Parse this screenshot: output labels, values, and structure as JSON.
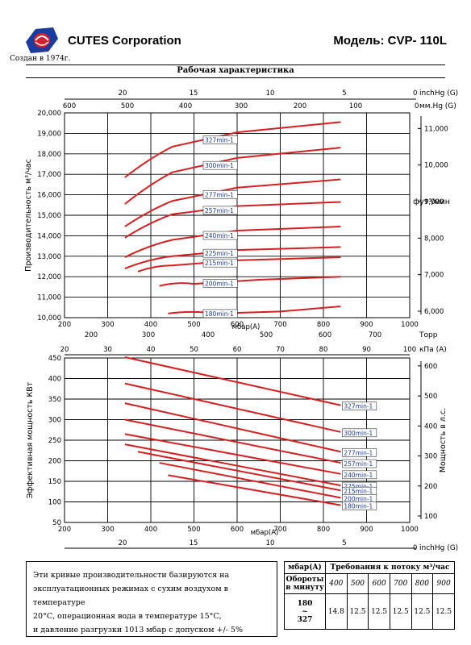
{
  "header": {
    "company": "CUTES Corporation",
    "model": "Модель: CVP- 110L",
    "founded": "Создан в 1974г.",
    "section_title": "Рабочая характеристика"
  },
  "logo": {
    "icon": "cutes-globe-logo",
    "color_blue": "#1a3c9c",
    "color_red": "#d2202a"
  },
  "chart_data": [
    {
      "type": "line",
      "title": "",
      "ylabel": "Производительность м³/час",
      "ylabel_right": "фут³/мин",
      "ylim": [
        10000,
        20000
      ],
      "yticks": [
        "10,000",
        "11,000",
        "12,000",
        "13,000",
        "14,000",
        "15,000",
        "16,000",
        "17,000",
        "18,000",
        "19,000",
        "20,000"
      ],
      "yticks_right": [
        "6,000",
        "7,000",
        "8,000",
        "9,000",
        "10,000",
        "11,000"
      ],
      "xlabel": "мбар(A)",
      "xlim": [
        200,
        1000
      ],
      "xticks": [
        "200",
        "300",
        "400",
        "500",
        "600",
        "700",
        "800",
        "900",
        "1000"
      ],
      "top_axis_inhg": {
        "label": "inchHg (G)",
        "ticks": [
          "0",
          "5",
          "10",
          "15",
          "20"
        ]
      },
      "top_axis_mmhg": {
        "label": "мм.Hg (G)",
        "ticks": [
          "0",
          "100",
          "200",
          "300",
          "400",
          "500",
          "600"
        ]
      },
      "bottom_axis_torr": {
        "label": "Торр",
        "ticks": [
          "200",
          "300",
          "400",
          "500",
          "600",
          "700"
        ]
      },
      "line_color": "#d42020",
      "series": [
        {
          "name": "327min-1",
          "x": [
            340,
            450,
            600,
            840
          ],
          "y": [
            16850,
            18350,
            19050,
            19550
          ]
        },
        {
          "name": "300min-1",
          "x": [
            340,
            450,
            600,
            840
          ],
          "y": [
            15550,
            17100,
            17800,
            18300
          ]
        },
        {
          "name": "277min-1",
          "x": [
            340,
            450,
            600,
            840
          ],
          "y": [
            14450,
            15700,
            16350,
            16750
          ]
        },
        {
          "name": "257min-1",
          "x": [
            340,
            450,
            600,
            840
          ],
          "y": [
            13900,
            15050,
            15450,
            15650
          ]
        },
        {
          "name": "240min-1",
          "x": [
            340,
            450,
            600,
            840
          ],
          "y": [
            12950,
            13800,
            14250,
            14450
          ]
        },
        {
          "name": "225min-1",
          "x": [
            340,
            450,
            600,
            840
          ],
          "y": [
            12400,
            13000,
            13300,
            13450
          ]
        },
        {
          "name": "215min-1",
          "x": [
            370,
            450,
            600,
            840
          ],
          "y": [
            12250,
            12550,
            12800,
            12950
          ]
        },
        {
          "name": "200min-1",
          "x": [
            420,
            500,
            650,
            840
          ],
          "y": [
            11550,
            11650,
            11850,
            12000
          ]
        },
        {
          "name": "180min-1",
          "x": [
            440,
            550,
            700,
            840
          ],
          "y": [
            10200,
            10200,
            10300,
            10550
          ]
        }
      ]
    },
    {
      "type": "line",
      "title": "",
      "ylabel": "Эффективная мощность КВт",
      "ylabel_right": "Мощность в л.с.",
      "ylim": [
        50,
        450
      ],
      "yticks": [
        "50",
        "100",
        "150",
        "200",
        "250",
        "300",
        "350",
        "400",
        "450"
      ],
      "yticks_right": [
        "100",
        "200",
        "300",
        "400",
        "500",
        "600"
      ],
      "xlabel": "мбар(A)",
      "xlim": [
        200,
        1000
      ],
      "xticks": [
        "200",
        "300",
        "400",
        "500",
        "600",
        "700",
        "800",
        "900",
        "1000"
      ],
      "top_axis_kpa": {
        "label": "кПа (A)",
        "ticks": [
          "20",
          "30",
          "40",
          "50",
          "60",
          "70",
          "80",
          "90",
          "100"
        ]
      },
      "bottom_axis_inhg": {
        "label": "inchHg (G)",
        "ticks": [
          "0",
          "5",
          "10",
          "15",
          "20"
        ]
      },
      "line_color": "#d42020",
      "series": [
        {
          "name": "327min-1",
          "x": [
            340,
            840
          ],
          "y": [
            452,
            335
          ]
        },
        {
          "name": "300min-1",
          "x": [
            340,
            840
          ],
          "y": [
            388,
            270
          ]
        },
        {
          "name": "277min-1",
          "x": [
            340,
            840
          ],
          "y": [
            340,
            222
          ]
        },
        {
          "name": "257min-1",
          "x": [
            340,
            840
          ],
          "y": [
            300,
            195
          ]
        },
        {
          "name": "240min-1",
          "x": [
            340,
            840
          ],
          "y": [
            265,
            168
          ]
        },
        {
          "name": "225min-1",
          "x": [
            340,
            840
          ],
          "y": [
            240,
            140
          ]
        },
        {
          "name": "215min-1",
          "x": [
            370,
            840
          ],
          "y": [
            222,
            128
          ]
        },
        {
          "name": "200min-1",
          "x": [
            420,
            840
          ],
          "y": [
            195,
            110
          ]
        },
        {
          "name": "180min-1",
          "x": [
            440,
            840
          ],
          "y": [
            165,
            92
          ]
        }
      ]
    }
  ],
  "note": {
    "lines": [
      "Эти кривые производительности базируются на",
      "эксплуатационных режимах с сухим воздухом в температуре",
      "20°С, операционная вода в температуре 15°С,",
      "и давление разгрузки 1013 мбар с допуском +/- 5%"
    ]
  },
  "requirements_table": {
    "col1_header": "мбар(A)",
    "col2_header": "Требования к потоку м³/час",
    "row_label": "Обороты в минуту",
    "pressures": [
      "400",
      "500",
      "600",
      "700",
      "800",
      "900"
    ],
    "speed_range": [
      "180",
      "~",
      "327"
    ],
    "values": [
      "14.8",
      "12.5",
      "12.5",
      "12.5",
      "12.5",
      "12.5"
    ]
  }
}
